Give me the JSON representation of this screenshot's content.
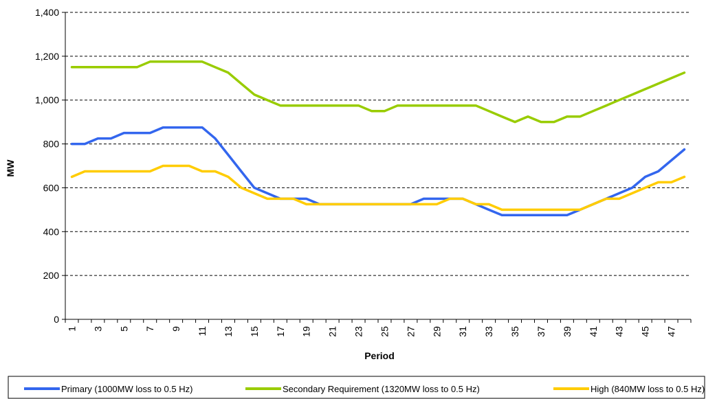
{
  "chart_data": {
    "type": "line",
    "title": "",
    "xlabel": "Period",
    "ylabel": "MW",
    "ylim": [
      0,
      1400
    ],
    "yticks": [
      0,
      200,
      400,
      600,
      800,
      1000,
      1200,
      1400
    ],
    "ytick_labels": [
      "0",
      "200",
      "400",
      "600",
      "800",
      "1,000",
      "1,200",
      "1,400"
    ],
    "xlim": [
      1,
      48
    ],
    "xtick_labels": [
      "1",
      "3",
      "5",
      "7",
      "9",
      "11",
      "13",
      "15",
      "17",
      "19",
      "21",
      "23",
      "25",
      "27",
      "29",
      "31",
      "33",
      "35",
      "37",
      "39",
      "41",
      "43",
      "45",
      "47"
    ],
    "grid": "horizontal dashed",
    "legend_position": "bottom",
    "x": [
      1,
      2,
      3,
      4,
      5,
      6,
      7,
      8,
      9,
      10,
      11,
      12,
      13,
      14,
      15,
      16,
      17,
      18,
      19,
      20,
      21,
      22,
      23,
      24,
      25,
      26,
      27,
      28,
      29,
      30,
      31,
      32,
      33,
      34,
      35,
      36,
      37,
      38,
      39,
      40,
      41,
      42,
      43,
      44,
      45,
      46,
      47,
      48
    ],
    "series": [
      {
        "name": "Primary (1000MW loss to 0.5 Hz)",
        "color": "#3366ee",
        "values": [
          800,
          800,
          825,
          825,
          850,
          850,
          850,
          875,
          875,
          875,
          875,
          825,
          750,
          675,
          600,
          575,
          550,
          550,
          550,
          525,
          525,
          525,
          525,
          525,
          525,
          525,
          525,
          550,
          550,
          550,
          550,
          525,
          500,
          475,
          475,
          475,
          475,
          475,
          475,
          500,
          525,
          550,
          575,
          600,
          650,
          675,
          725,
          775
        ]
      },
      {
        "name": "Secondary Requirement (1320MW loss to 0.5 Hz)",
        "color": "#99cc00",
        "values": [
          1150,
          1150,
          1150,
          1150,
          1150,
          1150,
          1175,
          1175,
          1175,
          1175,
          1175,
          1150,
          1125,
          1075,
          1025,
          1000,
          975,
          975,
          975,
          975,
          975,
          975,
          975,
          950,
          950,
          975,
          975,
          975,
          975,
          975,
          975,
          975,
          950,
          925,
          900,
          925,
          900,
          900,
          925,
          925,
          950,
          975,
          1000,
          1025,
          1050,
          1075,
          1100,
          1125
        ]
      },
      {
        "name": "High (840MW loss to 0.5 Hz)",
        "color": "#ffcc00",
        "values": [
          650,
          675,
          675,
          675,
          675,
          675,
          675,
          700,
          700,
          700,
          675,
          675,
          650,
          600,
          575,
          550,
          550,
          550,
          525,
          525,
          525,
          525,
          525,
          525,
          525,
          525,
          525,
          525,
          525,
          550,
          550,
          525,
          525,
          500,
          500,
          500,
          500,
          500,
          500,
          500,
          525,
          550,
          550,
          575,
          600,
          625,
          625,
          650
        ]
      }
    ]
  }
}
